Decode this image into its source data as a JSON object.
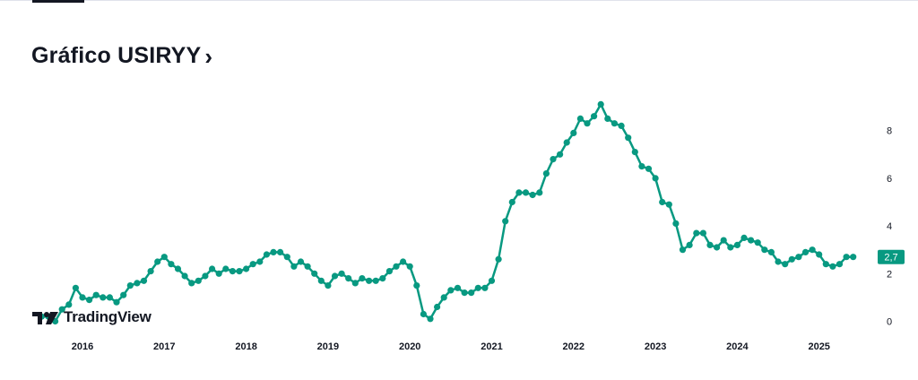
{
  "header": {
    "title": "Gráfico USIRYY",
    "chevron": "›"
  },
  "branding": {
    "name": "TradingView",
    "logo_icon": "tradingview-logo-icon"
  },
  "colors": {
    "series": "#089981",
    "label_bg": "#089981",
    "label_text": "#ffffff",
    "text": "#131722"
  },
  "chart_data": {
    "type": "line",
    "title": "",
    "xlabel": "",
    "ylabel": "",
    "x_ticks": [
      "2016",
      "2017",
      "2018",
      "2019",
      "2020",
      "2021",
      "2022",
      "2023",
      "2024",
      "2025"
    ],
    "y_ticks": [
      "0",
      "2",
      "4",
      "6",
      "8"
    ],
    "ylim": [
      0,
      9.1
    ],
    "y_axis_position": "right",
    "grid": false,
    "last_value_label": "2,7",
    "series": [
      {
        "x_start": "2015-07",
        "frequency": "monthly",
        "values": [
          0.2,
          0.2,
          0.0,
          0.5,
          0.7,
          1.4,
          1.0,
          0.9,
          1.1,
          1.0,
          1.0,
          0.8,
          1.1,
          1.5,
          1.6,
          1.7,
          2.1,
          2.5,
          2.7,
          2.4,
          2.2,
          1.9,
          1.6,
          1.7,
          1.9,
          2.2,
          2.0,
          2.2,
          2.1,
          2.1,
          2.2,
          2.4,
          2.5,
          2.8,
          2.9,
          2.9,
          2.7,
          2.3,
          2.5,
          2.3,
          2.0,
          1.7,
          1.5,
          1.9,
          2.0,
          1.8,
          1.6,
          1.8,
          1.7,
          1.7,
          1.8,
          2.1,
          2.3,
          2.5,
          2.3,
          1.5,
          0.3,
          0.1,
          0.6,
          1.0,
          1.3,
          1.4,
          1.2,
          1.2,
          1.4,
          1.4,
          1.7,
          2.6,
          4.2,
          5.0,
          5.4,
          5.4,
          5.3,
          5.4,
          6.2,
          6.8,
          7.0,
          7.5,
          7.9,
          8.5,
          8.3,
          8.6,
          9.1,
          8.5,
          8.3,
          8.2,
          7.7,
          7.1,
          6.5,
          6.4,
          6.0,
          5.0,
          4.9,
          4.1,
          3.0,
          3.2,
          3.7,
          3.7,
          3.2,
          3.1,
          3.4,
          3.1,
          3.2,
          3.5,
          3.4,
          3.3,
          3.0,
          2.9,
          2.5,
          2.4,
          2.6,
          2.7,
          2.9,
          3.0,
          2.8,
          2.4,
          2.3,
          2.4,
          2.7,
          2.7
        ]
      }
    ]
  }
}
